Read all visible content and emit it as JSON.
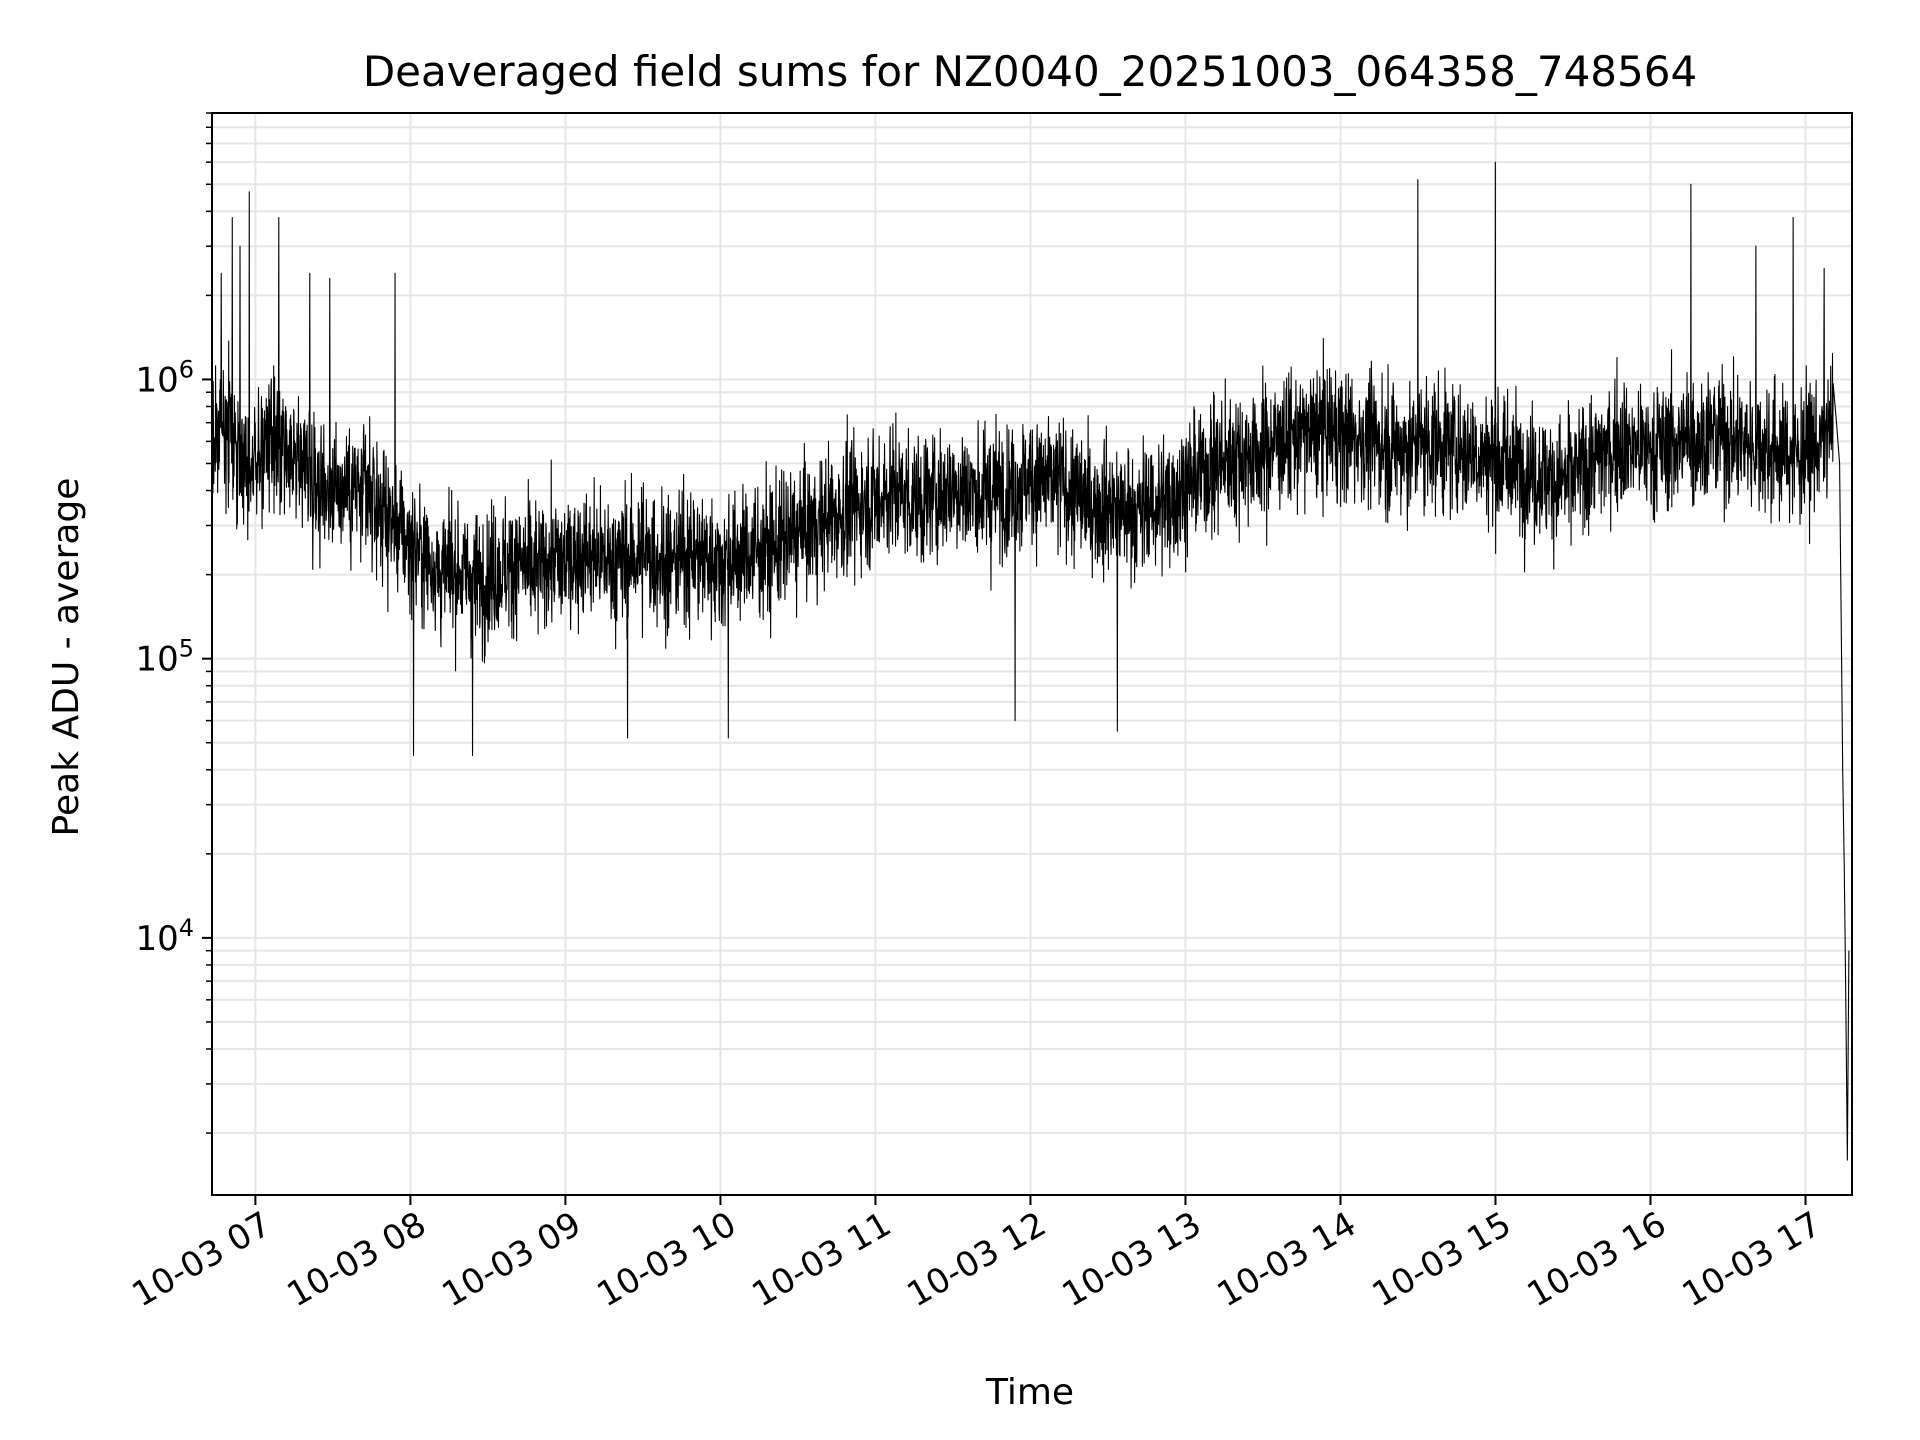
{
  "chart_data": {
    "type": "line",
    "title": "Deaveraged field sums for NZ0040_20251003_064358_748564",
    "xlabel": "Time",
    "ylabel": "Peak ADU - average",
    "yscale": "log",
    "ylim": [
      1200,
      9000000
    ],
    "xlim_hours": [
      6.72,
      17.3
    ],
    "grid": true,
    "line_color": "#000000",
    "grid_color": "#e6e6e6",
    "x_ticks": [
      {
        "value": 7,
        "label": "10-03 07"
      },
      {
        "value": 8,
        "label": "10-03 08"
      },
      {
        "value": 9,
        "label": "10-03 09"
      },
      {
        "value": 10,
        "label": "10-03 10"
      },
      {
        "value": 11,
        "label": "10-03 11"
      },
      {
        "value": 12,
        "label": "10-03 12"
      },
      {
        "value": 13,
        "label": "10-03 13"
      },
      {
        "value": 14,
        "label": "10-03 14"
      },
      {
        "value": 15,
        "label": "10-03 15"
      },
      {
        "value": 16,
        "label": "10-03 16"
      },
      {
        "value": 17,
        "label": "10-03 17"
      }
    ],
    "y_ticks": [
      {
        "value": 10000,
        "base": "10",
        "exp": "4"
      },
      {
        "value": 100000,
        "base": "10",
        "exp": "5"
      },
      {
        "value": 1000000,
        "base": "10",
        "exp": "6"
      }
    ],
    "series": [
      {
        "name": "Peak ADU - average",
        "x": [
          6.72,
          6.8,
          6.9,
          7.0,
          7.1,
          7.2,
          7.3,
          7.4,
          7.5,
          7.6,
          7.7,
          7.8,
          7.9,
          8.0,
          8.1,
          8.2,
          8.3,
          8.4,
          8.5,
          8.6,
          8.7,
          8.8,
          8.9,
          9.0,
          9.1,
          9.2,
          9.3,
          9.4,
          9.5,
          9.6,
          9.7,
          9.8,
          9.9,
          10.0,
          10.1,
          10.2,
          10.3,
          10.4,
          10.5,
          10.6,
          10.7,
          10.8,
          10.9,
          11.0,
          11.1,
          11.2,
          11.3,
          11.4,
          11.5,
          11.6,
          11.7,
          11.8,
          11.9,
          12.0,
          12.1,
          12.2,
          12.3,
          12.4,
          12.5,
          12.6,
          12.7,
          12.8,
          12.9,
          13.0,
          13.1,
          13.2,
          13.3,
          13.4,
          13.5,
          13.6,
          13.7,
          13.8,
          13.9,
          14.0,
          14.1,
          14.2,
          14.3,
          14.4,
          14.5,
          14.6,
          14.7,
          14.8,
          14.9,
          15.0,
          15.1,
          15.2,
          15.3,
          15.4,
          15.5,
          15.6,
          15.7,
          15.8,
          15.9,
          16.0,
          16.1,
          16.2,
          16.3,
          16.4,
          16.5,
          16.6,
          16.7,
          16.8,
          16.9,
          17.0,
          17.1,
          17.15,
          17.2,
          17.22,
          17.24,
          17.25,
          17.26,
          17.27,
          17.28
        ],
        "y": [
          600000,
          700000,
          550000,
          500000,
          620000,
          480000,
          520000,
          450000,
          400000,
          420000,
          380000,
          350000,
          300000,
          260000,
          230000,
          200000,
          210000,
          190000,
          200000,
          210000,
          220000,
          200000,
          230000,
          220000,
          240000,
          230000,
          220000,
          230000,
          240000,
          230000,
          220000,
          240000,
          230000,
          220000,
          230000,
          240000,
          250000,
          260000,
          280000,
          300000,
          320000,
          340000,
          360000,
          380000,
          400000,
          380000,
          370000,
          390000,
          420000,
          400000,
          380000,
          400000,
          420000,
          440000,
          430000,
          420000,
          380000,
          350000,
          360000,
          340000,
          330000,
          350000,
          380000,
          420000,
          460000,
          500000,
          520000,
          540000,
          560000,
          600000,
          620000,
          640000,
          660000,
          640000,
          620000,
          600000,
          580000,
          560000,
          580000,
          600000,
          580000,
          560000,
          540000,
          520000,
          500000,
          480000,
          450000,
          430000,
          450000,
          500000,
          550000,
          600000,
          580000,
          560000,
          580000,
          600000,
          620000,
          640000,
          620000,
          600000,
          580000,
          560000,
          540000,
          550000,
          600000,
          650000,
          700000,
          500000,
          40000,
          18000,
          6000,
          1600,
          9000
        ],
        "noise_seed": 1337,
        "samples_per_hour": 520,
        "spikes": [
          {
            "x": 6.78,
            "y": 2400000
          },
          {
            "x": 6.85,
            "y": 3800000
          },
          {
            "x": 6.9,
            "y": 3000000
          },
          {
            "x": 6.96,
            "y": 4700000
          },
          {
            "x": 7.15,
            "y": 3800000
          },
          {
            "x": 7.35,
            "y": 2400000
          },
          {
            "x": 7.48,
            "y": 2300000
          },
          {
            "x": 7.9,
            "y": 2400000
          },
          {
            "x": 14.5,
            "y": 5200000
          },
          {
            "x": 15.0,
            "y": 6000000
          },
          {
            "x": 16.26,
            "y": 5000000
          },
          {
            "x": 16.92,
            "y": 3800000
          },
          {
            "x": 16.68,
            "y": 3000000
          },
          {
            "x": 17.12,
            "y": 2500000
          },
          {
            "x": 8.02,
            "y": 45000
          },
          {
            "x": 8.4,
            "y": 45000
          },
          {
            "x": 12.56,
            "y": 55000
          },
          {
            "x": 11.9,
            "y": 60000
          },
          {
            "x": 9.4,
            "y": 52000
          },
          {
            "x": 10.05,
            "y": 52000
          }
        ]
      }
    ]
  }
}
